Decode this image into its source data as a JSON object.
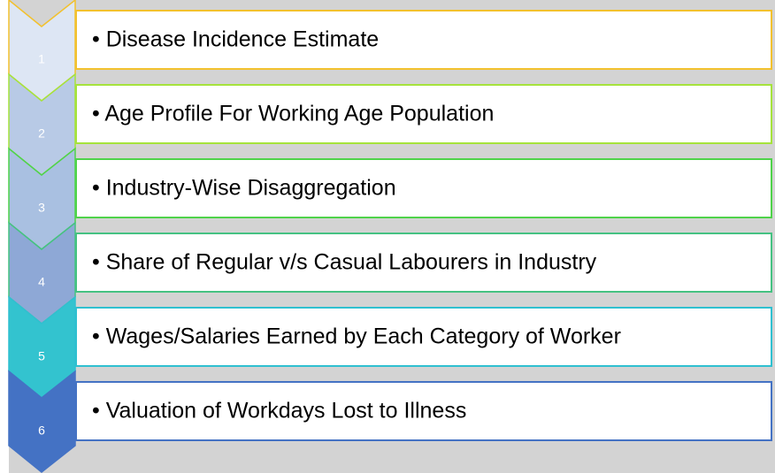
{
  "items": [
    {
      "number": 1,
      "text": "• Disease Incidence Estimate"
    },
    {
      "number": 2,
      "text": "• Age Profile For Working Age Population"
    },
    {
      "number": 3,
      "text": "• Industry-Wise Disaggregation"
    },
    {
      "number": 4,
      "text": "• Share of Regular v/s Casual Labourers in Industry"
    },
    {
      "number": 5,
      "text": "• Wages/Salaries Earned by Each Category of Worker"
    },
    {
      "number": 6,
      "text": "• Valuation of Workdays Lost to Illness"
    }
  ]
}
